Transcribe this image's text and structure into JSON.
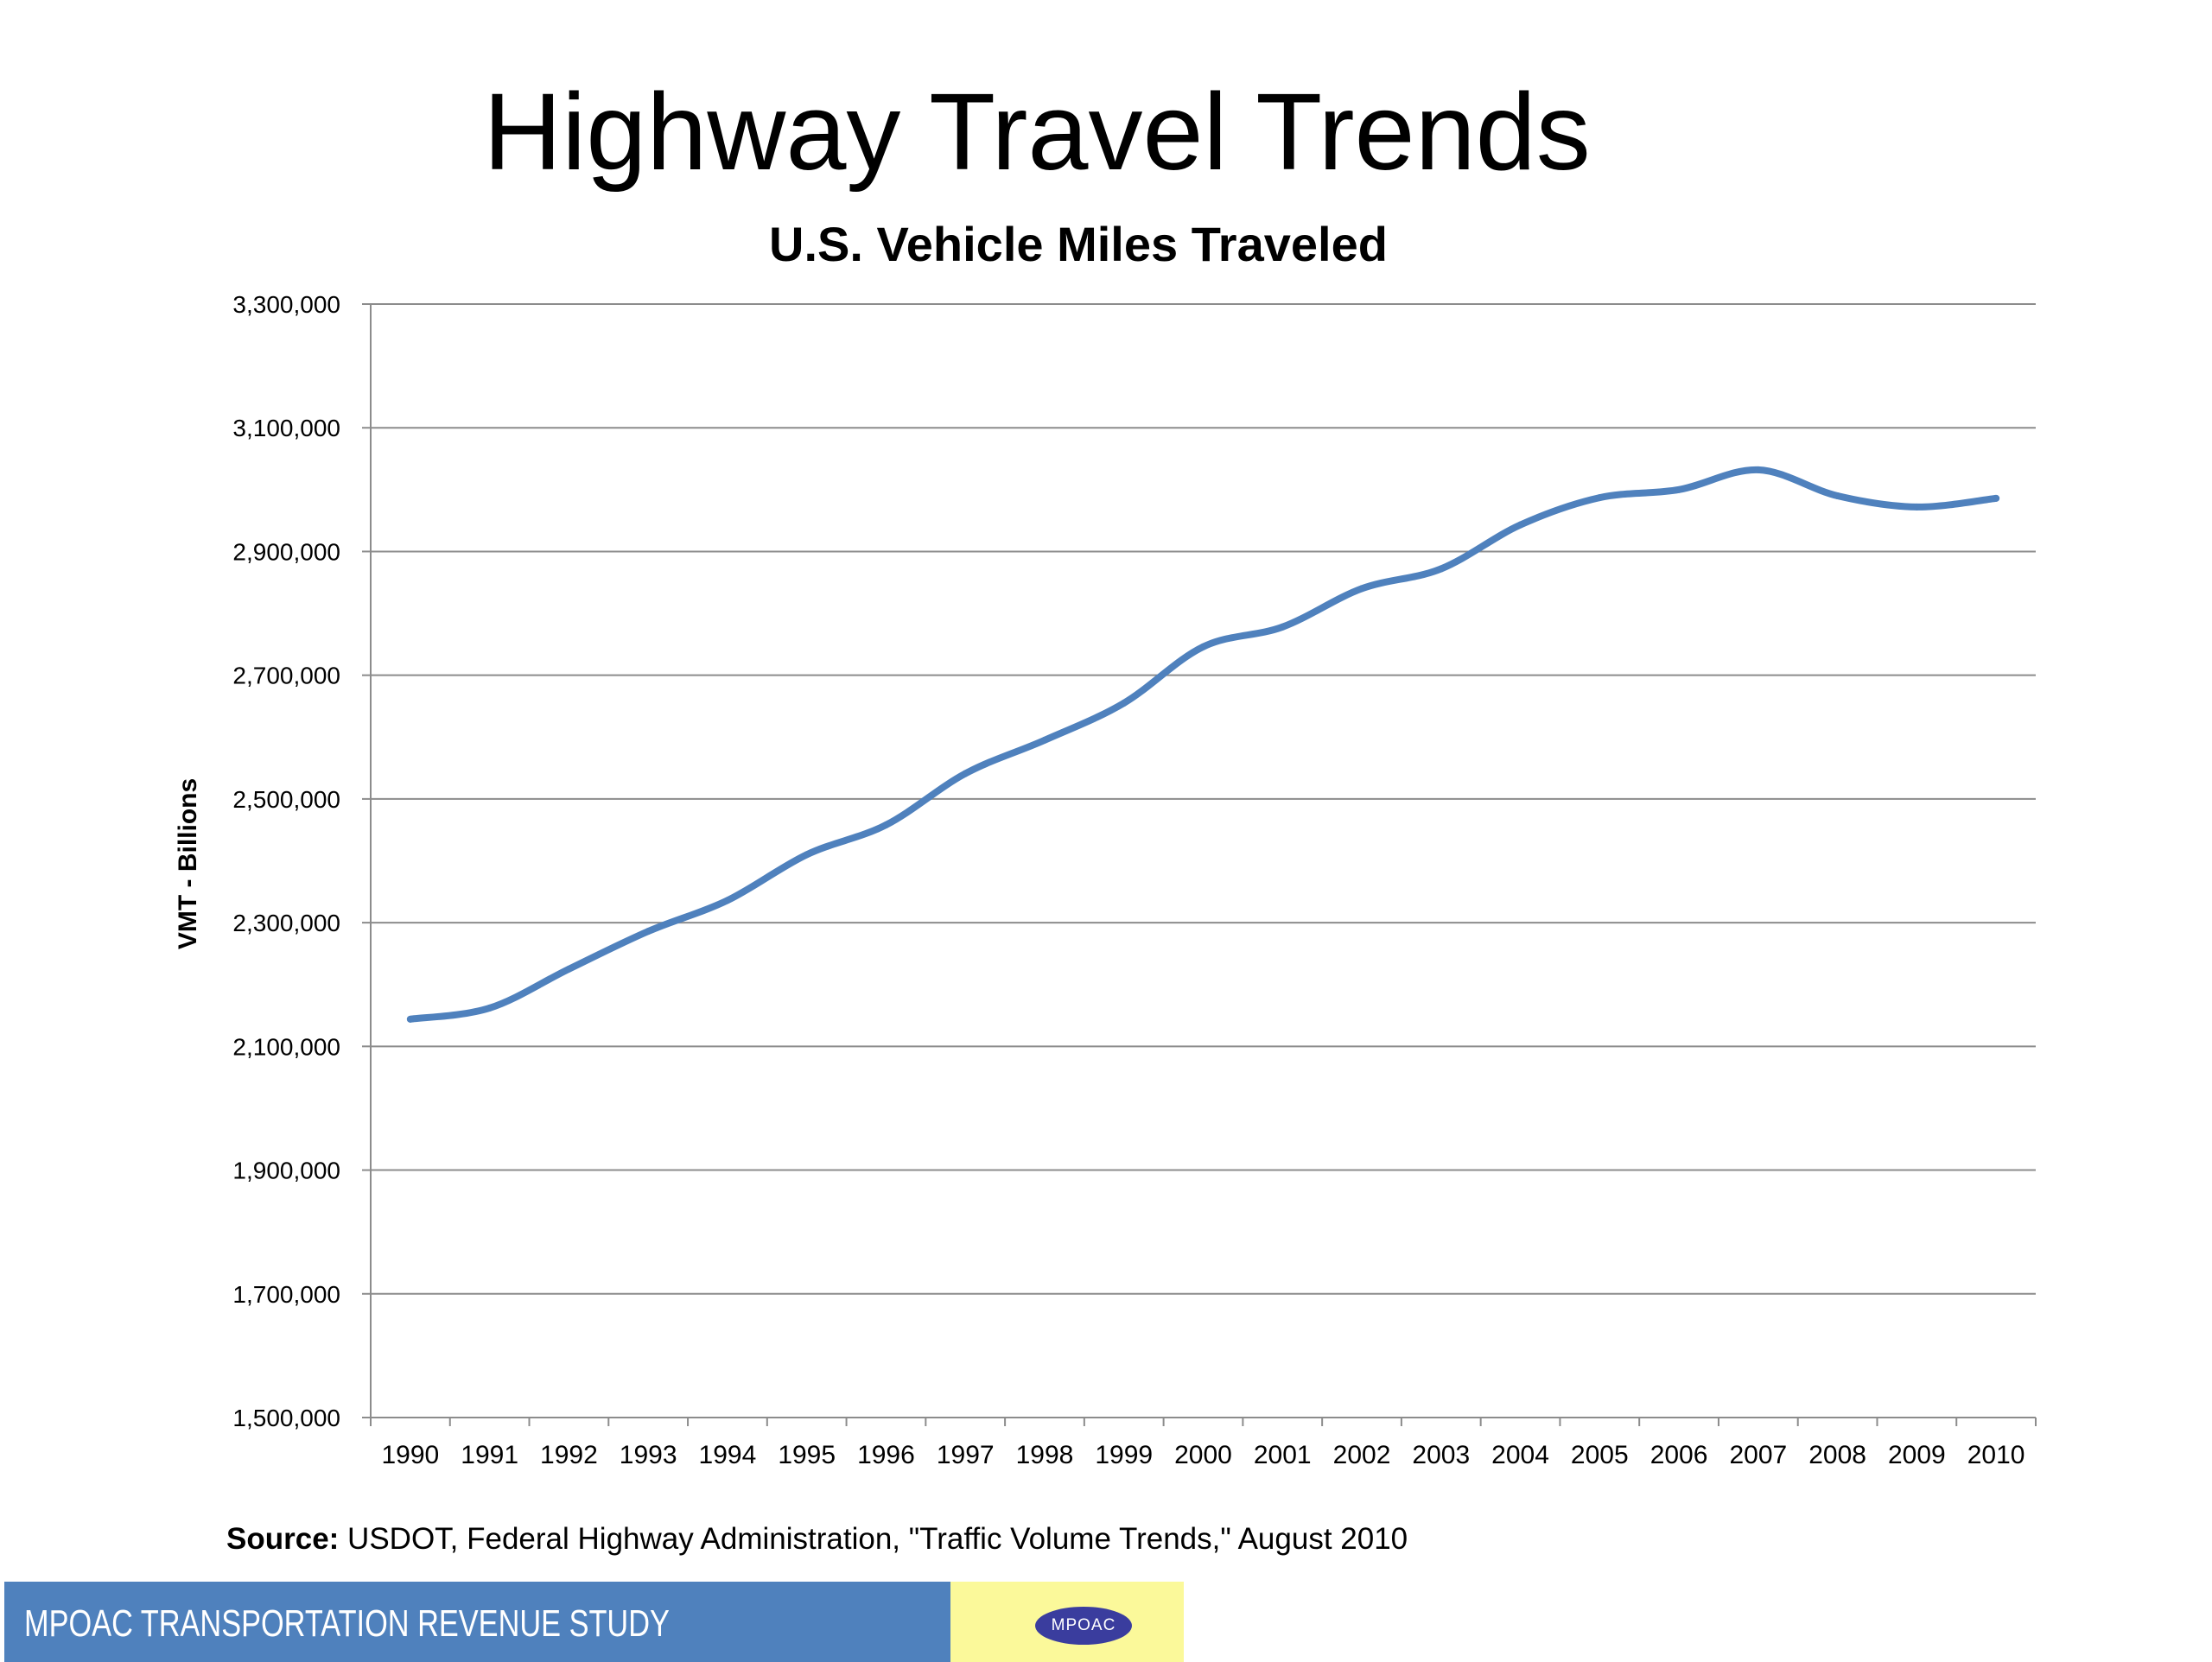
{
  "slide": {
    "title": "Highway Travel Trends",
    "source_label": "Source:",
    "source_text": "USDOT, Federal Highway Administration, \"Traffic Volume Trends,\" August 2010",
    "footer_text": "MPOAC  TRANSPORTATION REVENUE STUDY",
    "logo_text": "MPOAC",
    "colors": {
      "footer_band": "#4f81bd",
      "logo_box": "#fbf99a",
      "logo_oval": "#3a3d9e",
      "line": "#4f81bd"
    }
  },
  "chart_data": {
    "type": "line",
    "title": "U.S. Vehicle Miles Traveled",
    "xlabel": "",
    "ylabel": "VMT - Billions",
    "x": [
      "1990",
      "1991",
      "1992",
      "1993",
      "1994",
      "1995",
      "1996",
      "1997",
      "1998",
      "1999",
      "2000",
      "2001",
      "2002",
      "2003",
      "2004",
      "2005",
      "2006",
      "2007",
      "2008",
      "2009",
      "2010"
    ],
    "series": [
      {
        "values": [
          2144000,
          2162000,
          2225000,
          2286000,
          2336000,
          2410000,
          2458000,
          2541000,
          2595000,
          2655000,
          2746000,
          2778000,
          2840000,
          2872000,
          2943000,
          2987000,
          3000000,
          3032000,
          2990000,
          2972000,
          2986000
        ]
      }
    ],
    "ylim": [
      1500000,
      3300000
    ],
    "yticks": [
      "1,500,000",
      "1,700,000",
      "1,900,000",
      "2,100,000",
      "2,300,000",
      "2,500,000",
      "2,700,000",
      "2,900,000",
      "3,100,000",
      "3,300,000"
    ],
    "ytick_values": [
      1500000,
      1700000,
      1900000,
      2100000,
      2300000,
      2500000,
      2700000,
      2900000,
      3100000,
      3300000
    ],
    "grid": true,
    "legend": "none",
    "line_color": "#4f81bd"
  }
}
